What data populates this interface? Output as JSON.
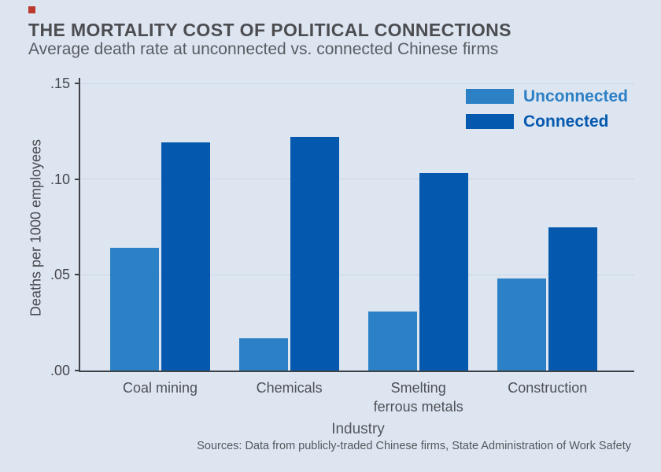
{
  "page": {
    "background": "#dde5f1",
    "accent_square_color": "#bc392e"
  },
  "header": {
    "title": "THE MORTALITY COST OF POLITICAL CONNECTIONS",
    "subtitle": "Average death rate at unconnected vs. connected Chinese firms"
  },
  "chart_data": {
    "type": "bar",
    "title": "THE MORTALITY COST OF POLITICAL CONNECTIONS",
    "subtitle": "Average death rate at unconnected vs. connected Chinese firms",
    "categories": [
      "Coal mining",
      "Chemicals",
      "Smelting\nferrous metals",
      "Construction"
    ],
    "series": [
      {
        "name": "Unconnected",
        "color": "#2c80c5",
        "values": [
          0.064,
          0.017,
          0.031,
          0.048
        ]
      },
      {
        "name": "Connected",
        "color": "#0459af",
        "values": [
          0.119,
          0.122,
          0.103,
          0.075
        ]
      }
    ],
    "xlabel": "Industry",
    "ylabel": "Deaths per 1000 employees",
    "ylim": [
      0,
      0.15
    ],
    "yticks": [
      {
        "value": 0.0,
        "label": ".00"
      },
      {
        "value": 0.05,
        "label": ".05"
      },
      {
        "value": 0.1,
        "label": ".10"
      },
      {
        "value": 0.15,
        "label": ".15"
      }
    ],
    "grid": true,
    "legend_position": "top-right",
    "axis_color": "#3e4247",
    "grid_color": "#cbd4e3"
  },
  "source": {
    "text": "Sources: Data from publicly-traded Chinese firms, State Administration of Work Safety"
  }
}
